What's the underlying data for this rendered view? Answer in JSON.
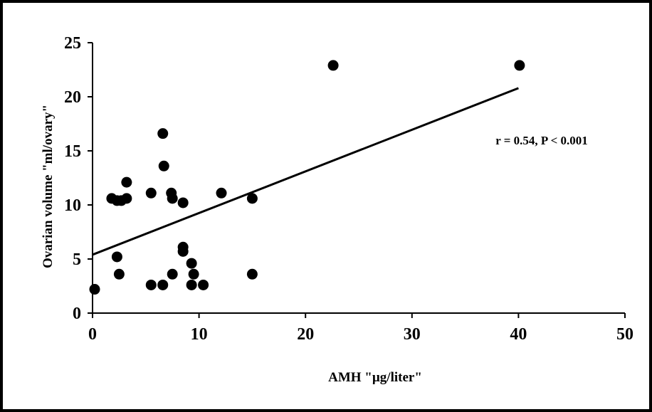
{
  "chart_data": {
    "type": "scatter",
    "title": "",
    "xlabel": "AMH \"µg/liter\"",
    "ylabel": "Ovarian volume \"ml/ovary\"",
    "xlim": [
      0,
      50
    ],
    "ylim": [
      0,
      25
    ],
    "x_ticks": [
      "0",
      "10",
      "20",
      "30",
      "40",
      "50"
    ],
    "y_ticks": [
      "0",
      "5",
      "10",
      "15",
      "20",
      "25"
    ],
    "grid": false,
    "legend": "none",
    "marker_color": "#000000",
    "points": [
      {
        "x": 0.2,
        "y": 2.2
      },
      {
        "x": 1.8,
        "y": 10.6
      },
      {
        "x": 2.3,
        "y": 10.4
      },
      {
        "x": 2.7,
        "y": 10.4
      },
      {
        "x": 3.2,
        "y": 10.6
      },
      {
        "x": 3.2,
        "y": 12.1
      },
      {
        "x": 2.3,
        "y": 5.2
      },
      {
        "x": 2.5,
        "y": 3.6
      },
      {
        "x": 5.5,
        "y": 11.1
      },
      {
        "x": 5.5,
        "y": 2.6
      },
      {
        "x": 6.6,
        "y": 16.6
      },
      {
        "x": 6.7,
        "y": 13.6
      },
      {
        "x": 6.6,
        "y": 2.6
      },
      {
        "x": 7.4,
        "y": 11.1
      },
      {
        "x": 7.5,
        "y": 10.6
      },
      {
        "x": 7.5,
        "y": 3.6
      },
      {
        "x": 8.5,
        "y": 10.2
      },
      {
        "x": 8.5,
        "y": 6.1
      },
      {
        "x": 8.5,
        "y": 5.7
      },
      {
        "x": 9.3,
        "y": 4.6
      },
      {
        "x": 9.5,
        "y": 3.6
      },
      {
        "x": 9.3,
        "y": 2.6
      },
      {
        "x": 10.4,
        "y": 2.6
      },
      {
        "x": 12.1,
        "y": 11.1
      },
      {
        "x": 15.0,
        "y": 10.6
      },
      {
        "x": 15.0,
        "y": 3.6
      },
      {
        "x": 22.6,
        "y": 22.9
      },
      {
        "x": 40.1,
        "y": 22.9
      }
    ],
    "trendline": {
      "x": [
        0,
        40
      ],
      "y": [
        5.4,
        20.8
      ]
    },
    "annotation": "r = 0.54, P < 0.001"
  }
}
